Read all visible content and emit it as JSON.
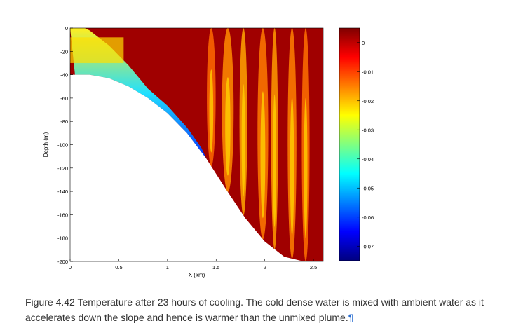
{
  "chart_data": {
    "type": "heatmap",
    "title": "",
    "xlabel": "X (km)",
    "ylabel": "Depth (m)",
    "xlim": [
      0,
      2.6
    ],
    "ylim": [
      -200,
      0
    ],
    "x_ticks": [
      {
        "value": 0,
        "label": "0"
      },
      {
        "value": 0.5,
        "label": "0.5"
      },
      {
        "value": 1,
        "label": "1"
      },
      {
        "value": 1.5,
        "label": "1.5"
      },
      {
        "value": 2,
        "label": "2"
      },
      {
        "value": 2.5,
        "label": "2.5"
      }
    ],
    "y_ticks": [
      {
        "value": 0,
        "label": "0"
      },
      {
        "value": -20,
        "label": "-20"
      },
      {
        "value": -40,
        "label": "-40"
      },
      {
        "value": -60,
        "label": "-60"
      },
      {
        "value": -80,
        "label": "-80"
      },
      {
        "value": -100,
        "label": "-100"
      },
      {
        "value": -120,
        "label": "-120"
      },
      {
        "value": -140,
        "label": "-140"
      },
      {
        "value": -160,
        "label": "-160"
      },
      {
        "value": -180,
        "label": "-180"
      },
      {
        "value": -200,
        "label": "-200"
      }
    ],
    "colorbar": {
      "range": [
        -0.075,
        0.005
      ],
      "ticks": [
        {
          "value": 0,
          "label": "0"
        },
        {
          "value": -0.01,
          "label": "-0.01"
        },
        {
          "value": -0.02,
          "label": "-0.02"
        },
        {
          "value": -0.03,
          "label": "-0.03"
        },
        {
          "value": -0.04,
          "label": "-0.04"
        },
        {
          "value": -0.05,
          "label": "-0.05"
        },
        {
          "value": -0.06,
          "label": "-0.06"
        },
        {
          "value": -0.07,
          "label": "-0.07"
        }
      ],
      "colors": [
        "#00007f",
        "#0000ff",
        "#0080ff",
        "#00ffff",
        "#80ff80",
        "#ffff00",
        "#ff8000",
        "#ff0000",
        "#7f0000"
      ]
    },
    "bathymetry": {
      "x": [
        0,
        0.2,
        0.4,
        0.6,
        0.8,
        1.0,
        1.2,
        1.4,
        1.6,
        1.8,
        2.0,
        2.2,
        2.4,
        2.6
      ],
      "depth": [
        -40,
        -40,
        -43,
        -50,
        -60,
        -73,
        -90,
        -112,
        -138,
        -163,
        -183,
        -196,
        -200,
        -200
      ]
    },
    "ambient_color": "#a00000",
    "cold_layer_color": "#0b6bff"
  },
  "caption": {
    "text": "Figure 4.42 Temperature after 23 hours of cooling. The cold dense water is mixed with ambient water as it accelerates down the slope and hence is warmer than the unmixed plume.",
    "pilcrow": "¶"
  }
}
